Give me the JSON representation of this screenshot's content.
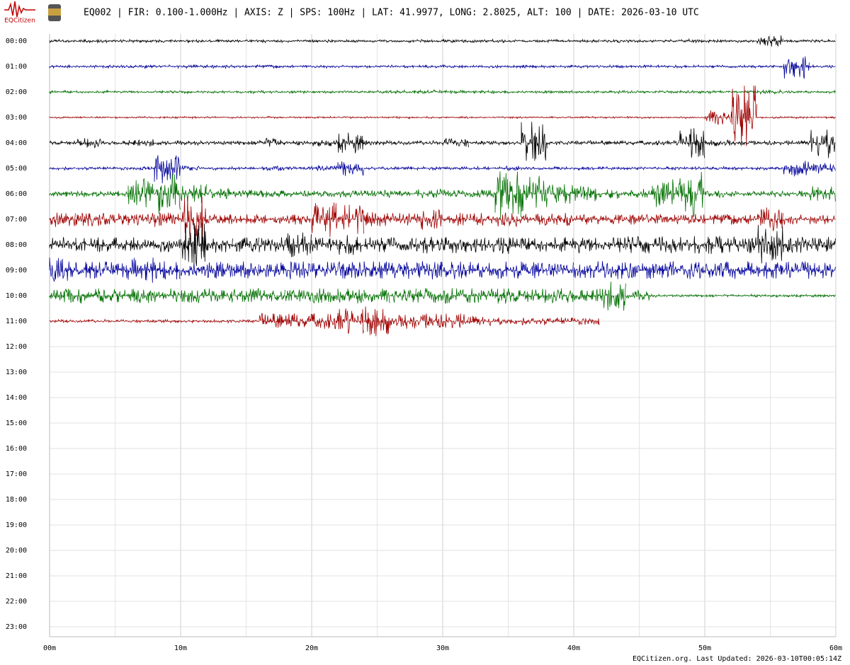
{
  "logo": "EQCitizen",
  "footer": "EQCitizen.org. Last Updated: 2026-03-10T00:05:14Z",
  "chart_data": {
    "type": "helicorder",
    "title": "EQ002 | FIR: 0.100-1.000Hz | AXIS: Z | SPS: 100Hz | LAT: 41.9977, LONG: 2.8025, ALT: 100 | DATE: 2026-03-10 UTC",
    "categories": [
      "00:00",
      "01:00",
      "02:00",
      "03:00",
      "04:00",
      "05:00",
      "06:00",
      "07:00",
      "08:00",
      "09:00",
      "10:00",
      "11:00",
      "12:00",
      "13:00",
      "14:00",
      "15:00",
      "16:00",
      "17:00",
      "18:00",
      "19:00",
      "20:00",
      "21:00",
      "22:00",
      "23:00"
    ],
    "xlim": [
      0,
      60
    ],
    "xticks": [
      {
        "value": 0,
        "label": "00m"
      },
      10,
      {
        "value": 10,
        "label": "10m"
      },
      {
        "value": 20,
        "label": "20m"
      },
      {
        "value": 30,
        "label": "30m"
      },
      {
        "value": 40,
        "label": "40m"
      },
      {
        "value": 50,
        "label": "50m"
      },
      {
        "value": 60,
        "label": "60m"
      }
    ],
    "minor_xticks": [
      5,
      15,
      25,
      35,
      45,
      55
    ],
    "x": [
      0,
      2,
      4,
      6,
      8,
      10,
      12,
      14,
      16,
      18,
      20,
      22,
      24,
      26,
      28,
      30,
      32,
      34,
      36,
      38,
      40,
      42,
      44,
      46,
      48,
      50,
      52,
      54,
      56,
      58
    ],
    "grid": true,
    "series": [
      {
        "color": "#000000",
        "values": [
          0.05,
          0.05,
          0.05,
          0.05,
          0.05,
          0.05,
          0.05,
          0.05,
          0.05,
          0.05,
          0.05,
          0.05,
          0.05,
          0.05,
          0.05,
          0.06,
          0.06,
          0.05,
          0.05,
          0.05,
          0.05,
          0.05,
          0.05,
          0.05,
          0.06,
          0.05,
          0.05,
          0.25,
          0.05,
          0.05
        ]
      },
      {
        "color": "#00009c",
        "values": [
          0.05,
          0.05,
          0.06,
          0.06,
          0.06,
          0.06,
          0.06,
          0.06,
          0.05,
          0.05,
          0.05,
          0.05,
          0.05,
          0.05,
          0.06,
          0.06,
          0.06,
          0.06,
          0.05,
          0.05,
          0.05,
          0.05,
          0.05,
          0.05,
          0.05,
          0.05,
          0.05,
          0.05,
          0.5,
          0.05
        ]
      },
      {
        "color": "#007000",
        "values": [
          0.05,
          0.05,
          0.05,
          0.05,
          0.05,
          0.05,
          0.05,
          0.05,
          0.05,
          0.05,
          0.05,
          0.05,
          0.05,
          0.07,
          0.07,
          0.07,
          0.05,
          0.05,
          0.05,
          0.05,
          0.05,
          0.05,
          0.05,
          0.05,
          0.05,
          0.05,
          0.05,
          0.07,
          0.05,
          0.05
        ]
      },
      {
        "color": "#a00000",
        "values": [
          0.03,
          0.03,
          0.03,
          0.03,
          0.03,
          0.03,
          0.03,
          0.03,
          0.03,
          0.03,
          0.03,
          0.03,
          0.03,
          0.03,
          0.03,
          0.03,
          0.03,
          0.03,
          0.03,
          0.03,
          0.03,
          0.03,
          0.03,
          0.03,
          0.03,
          0.3,
          1.3,
          0.03,
          0.03,
          0.03
        ]
      },
      {
        "color": "#000000",
        "values": [
          0.08,
          0.2,
          0.08,
          0.15,
          0.08,
          0.08,
          0.08,
          0.08,
          0.2,
          0.08,
          0.15,
          0.4,
          0.1,
          0.08,
          0.08,
          0.2,
          0.08,
          0.08,
          0.9,
          0.08,
          0.08,
          0.08,
          0.08,
          0.08,
          0.6,
          0.15,
          0.08,
          0.08,
          0.08,
          0.6
        ]
      },
      {
        "color": "#00009c",
        "values": [
          0.06,
          0.06,
          0.06,
          0.06,
          0.6,
          0.1,
          0.06,
          0.06,
          0.1,
          0.06,
          0.15,
          0.3,
          0.06,
          0.06,
          0.06,
          0.06,
          0.06,
          0.1,
          0.06,
          0.06,
          0.06,
          0.06,
          0.06,
          0.06,
          0.06,
          0.06,
          0.06,
          0.06,
          0.3,
          0.2
        ]
      },
      {
        "color": "#007000",
        "values": [
          0.1,
          0.12,
          0.12,
          0.6,
          0.8,
          0.4,
          0.2,
          0.15,
          0.15,
          0.12,
          0.12,
          0.15,
          0.15,
          0.12,
          0.2,
          0.15,
          0.15,
          1.0,
          0.8,
          0.4,
          0.3,
          0.2,
          0.2,
          0.6,
          0.9,
          0.15,
          0.12,
          0.12,
          0.12,
          0.3
        ]
      },
      {
        "color": "#a00000",
        "values": [
          0.3,
          0.3,
          0.25,
          0.25,
          0.3,
          0.9,
          0.2,
          0.2,
          0.2,
          0.2,
          0.7,
          0.6,
          0.3,
          0.25,
          0.4,
          0.25,
          0.25,
          0.3,
          0.25,
          0.25,
          0.2,
          0.2,
          0.2,
          0.2,
          0.2,
          0.2,
          0.2,
          0.5,
          0.2,
          0.2
        ]
      },
      {
        "color": "#000000",
        "values": [
          0.3,
          0.3,
          0.3,
          0.3,
          0.3,
          0.9,
          0.3,
          0.3,
          0.3,
          0.5,
          0.3,
          0.4,
          0.3,
          0.3,
          0.35,
          0.35,
          0.3,
          0.35,
          0.3,
          0.3,
          0.35,
          0.35,
          0.35,
          0.35,
          0.4,
          0.35,
          0.35,
          0.8,
          0.35,
          0.35
        ]
      },
      {
        "color": "#00009c",
        "values": [
          0.5,
          0.35,
          0.35,
          0.5,
          0.35,
          0.35,
          0.35,
          0.35,
          0.35,
          0.35,
          0.35,
          0.35,
          0.35,
          0.35,
          0.35,
          0.35,
          0.35,
          0.35,
          0.35,
          0.35,
          0.35,
          0.35,
          0.35,
          0.35,
          0.35,
          0.35,
          0.35,
          0.35,
          0.35,
          0.35
        ]
      },
      {
        "color": "#007000",
        "values": [
          0.3,
          0.3,
          0.3,
          0.3,
          0.35,
          0.3,
          0.3,
          0.3,
          0.25,
          0.25,
          0.3,
          0.3,
          0.3,
          0.3,
          0.3,
          0.3,
          0.3,
          0.3,
          0.3,
          0.3,
          0.3,
          0.6,
          0.2,
          0.05,
          0.05,
          0.05,
          0.05,
          0.05,
          0.05,
          0.05
        ]
      },
      {
        "color": "#a00000",
        "values": [
          0.06,
          0.06,
          0.06,
          0.06,
          0.06,
          0.06,
          0.06,
          0.06,
          0.3,
          0.3,
          0.3,
          0.5,
          0.6,
          0.3,
          0.3,
          0.3,
          0.2,
          0.15,
          0.15,
          0.15,
          0.15,
          null,
          null,
          null,
          null,
          null,
          null,
          null,
          null,
          null
        ]
      }
    ]
  }
}
